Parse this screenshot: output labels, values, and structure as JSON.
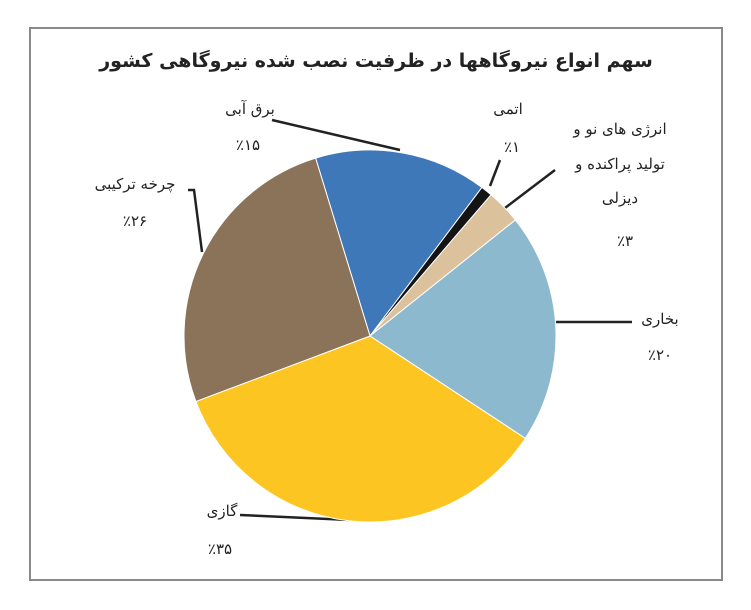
{
  "chart_data": {
    "type": "pie",
    "title": "سهم انواع نیروگاهها در ظرفیت نصب شده نیروگاهی کشور",
    "categories": [
      "برق آبی",
      "اتمی",
      "انرژی های نو و تولید پراکنده و دیزلی",
      "بخاری",
      "گازی",
      "چرخه ترکیبی"
    ],
    "values": [
      15,
      1,
      3,
      20,
      35,
      26
    ],
    "value_labels": [
      "٪۱۵",
      "٪۱",
      "٪۳",
      "٪۲۰",
      "٪۳۵",
      "٪۲۶"
    ],
    "colors": [
      "#3f78b8",
      "#141414",
      "#dcc29c",
      "#8db9cf",
      "#fdc521",
      "#8b7359"
    ]
  }
}
